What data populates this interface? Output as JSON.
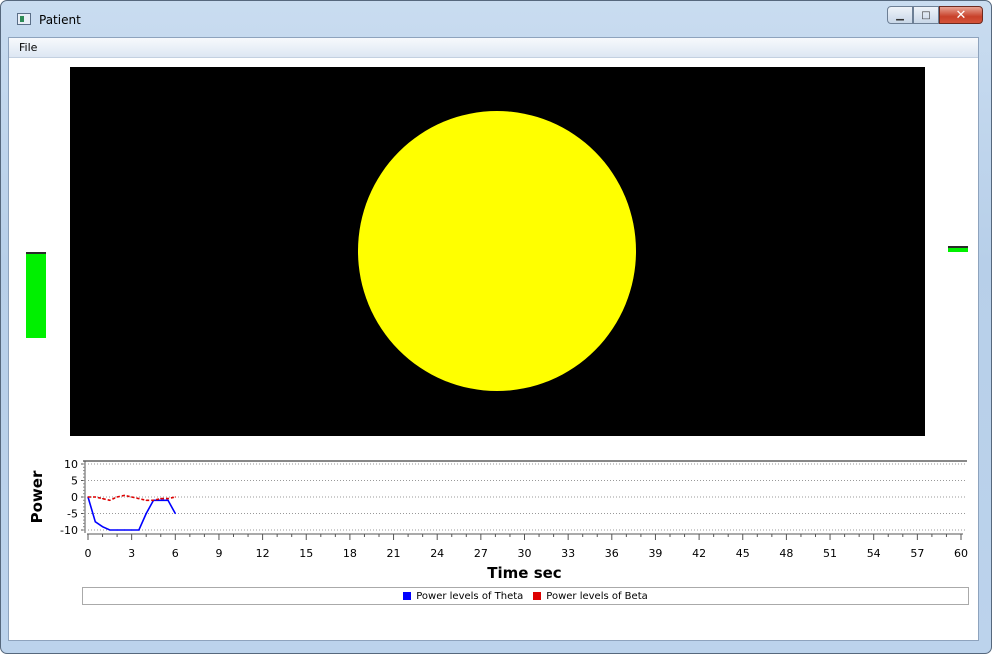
{
  "window": {
    "title": "Patient"
  },
  "menu": {
    "file": "File"
  },
  "controls": {
    "minimize": "minimize-icon",
    "maximize": "maximize-icon",
    "close": "close-icon"
  },
  "stage": {
    "background": "#000000",
    "circle_color": "#ffff00"
  },
  "level_bars": {
    "left_color": "#00f000",
    "right_color": "#00f000"
  },
  "chart_data": {
    "type": "line",
    "xlabel": "Time sec",
    "ylabel": "Power",
    "xlim": [
      0,
      60
    ],
    "ylim": [
      -10,
      10
    ],
    "x_ticks": [
      0,
      3,
      6,
      9,
      12,
      15,
      18,
      21,
      24,
      27,
      30,
      33,
      36,
      39,
      42,
      45,
      48,
      51,
      54,
      57,
      60
    ],
    "y_ticks": [
      10,
      5,
      0,
      -5,
      -10
    ],
    "grid": true,
    "legend_position": "bottom",
    "series": [
      {
        "name": "Power levels of Theta",
        "color": "#0000ff",
        "dash": false,
        "x": [
          0,
          0.5,
          1,
          1.5,
          2,
          2.5,
          3,
          3.5,
          4,
          4.5,
          5,
          5.5,
          6
        ],
        "y": [
          0,
          -7.5,
          -9,
          -10,
          -10,
          -10,
          -10,
          -10,
          -5,
          -1,
          -1,
          -1,
          -5
        ]
      },
      {
        "name": "Power levels of Beta",
        "color": "#dd0000",
        "dash": true,
        "x": [
          0,
          0.5,
          1,
          1.5,
          2,
          2.5,
          3,
          3.5,
          4,
          4.5,
          5,
          5.5,
          6
        ],
        "y": [
          0,
          0,
          -0.5,
          -1,
          0,
          0.5,
          0,
          -0.5,
          -1,
          -1,
          -0.5,
          -0.5,
          0
        ]
      }
    ]
  }
}
